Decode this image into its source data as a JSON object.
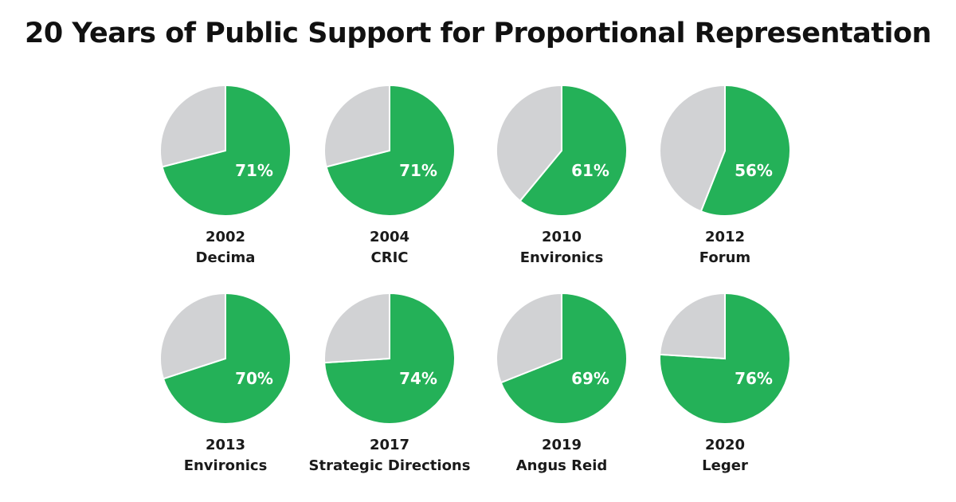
{
  "chart_data": {
    "type": "pie",
    "title": "20 Years of Public Support for Proportional Representation",
    "colors": {
      "support": "#24b158",
      "other": "#d1d2d4"
    },
    "pies": [
      {
        "year": "2002",
        "pollster": "Decima",
        "value": 71,
        "label": "71%"
      },
      {
        "year": "2004",
        "pollster": "CRIC",
        "value": 71,
        "label": "71%"
      },
      {
        "year": "2010",
        "pollster": "Environics",
        "value": 61,
        "label": "61%"
      },
      {
        "year": "2012",
        "pollster": "Forum",
        "value": 56,
        "label": "56%"
      },
      {
        "year": "2013",
        "pollster": "Environics",
        "value": 70,
        "label": "70%"
      },
      {
        "year": "2017",
        "pollster": "Strategic Directions",
        "value": 74,
        "label": "74%"
      },
      {
        "year": "2019",
        "pollster": "Angus Reid",
        "value": 69,
        "label": "69%"
      },
      {
        "year": "2020",
        "pollster": "Leger",
        "value": 76,
        "label": "76%"
      }
    ]
  }
}
